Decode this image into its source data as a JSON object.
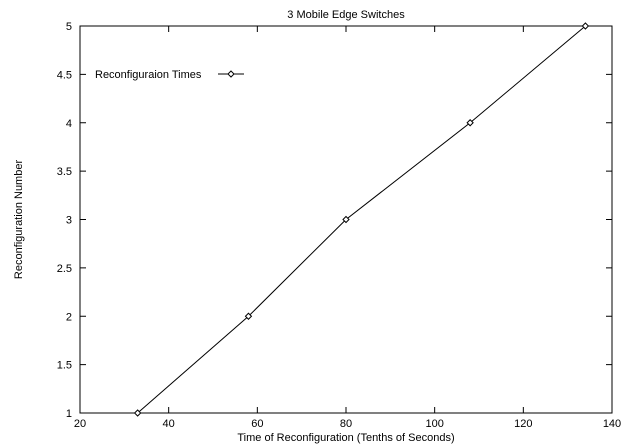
{
  "chart_data": {
    "type": "line",
    "title": "3 Mobile Edge Switches",
    "xlabel": "Time of Reconfiguration (Tenths of Seconds)",
    "ylabel": "Reconfiguration Number",
    "xlim": [
      20,
      140
    ],
    "ylim": [
      1,
      5
    ],
    "xticks": [
      "20",
      "40",
      "60",
      "80",
      "100",
      "120",
      "140"
    ],
    "yticks": [
      "1",
      "1.5",
      "2",
      "2.5",
      "3",
      "3.5",
      "4",
      "4.5",
      "5"
    ],
    "grid": false,
    "legend_position": "top-left",
    "series": [
      {
        "name": "Reconfiguraion Times",
        "marker": "diamond",
        "color": "#000000",
        "x": [
          33,
          58,
          80,
          108,
          134
        ],
        "y": [
          1,
          2,
          3,
          4,
          5
        ]
      }
    ]
  }
}
